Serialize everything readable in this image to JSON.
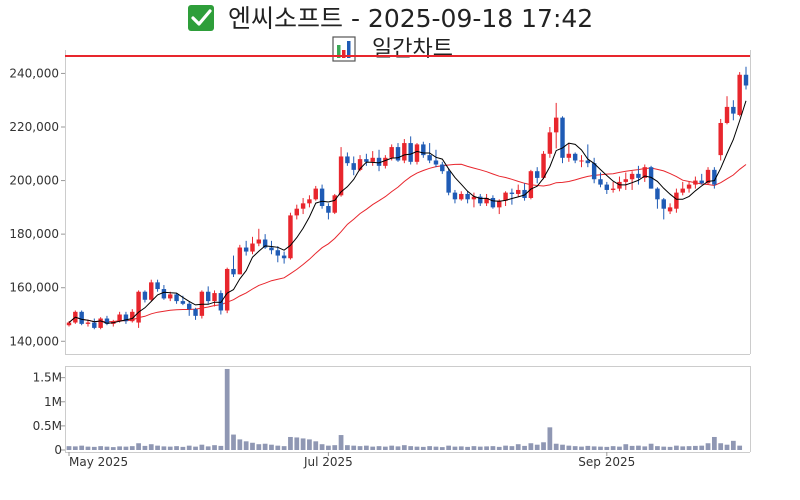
{
  "header": {
    "check_icon": "check-mark-icon",
    "title": "엔씨소프트 - 2025-09-18 17:42",
    "chart_icon": "bar-chart-icon",
    "subtitle": "일간차트"
  },
  "colors": {
    "up": "#e8262d",
    "down": "#1f5bb5",
    "ma5": "#000000",
    "ma20": "#e8262d",
    "resistance": "#e8262d",
    "volume": "#8f97b3",
    "check_bg": "#2e9e3a"
  },
  "chart_data": [
    {
      "type": "candlestick",
      "title": "일간차트",
      "ylim": [
        136000,
        248000
      ],
      "yticks": [
        140000,
        160000,
        180000,
        200000,
        220000,
        240000
      ],
      "ytick_labels": [
        "140,000",
        "160,000",
        "180,000",
        "200,000",
        "220,000",
        "240,000"
      ],
      "xtick_labels": [
        "May 2025",
        "Jul 2025",
        "Sep 2025"
      ],
      "xtick_index": [
        0,
        41,
        85
      ],
      "resistance_line": 246500,
      "grid": false,
      "ohlc": [
        [
          146000,
          147500,
          145500,
          147000
        ],
        [
          147000,
          151500,
          146500,
          151000
        ],
        [
          151000,
          151500,
          146000,
          146500
        ],
        [
          146500,
          148000,
          145500,
          147000
        ],
        [
          147000,
          148500,
          144500,
          145000
        ],
        [
          145000,
          149000,
          144500,
          148500
        ],
        [
          148500,
          149500,
          146000,
          146500
        ],
        [
          146500,
          148000,
          145500,
          147500
        ],
        [
          147500,
          151000,
          147000,
          150000
        ],
        [
          150000,
          151000,
          146500,
          147500
        ],
        [
          147500,
          152000,
          147000,
          151000
        ],
        [
          147000,
          159000,
          145000,
          158500
        ],
        [
          158500,
          159000,
          154500,
          155500
        ],
        [
          155500,
          163000,
          155000,
          162000
        ],
        [
          162000,
          163000,
          158500,
          159500
        ],
        [
          159500,
          161000,
          155500,
          156000
        ],
        [
          156000,
          158500,
          155000,
          157500
        ],
        [
          157500,
          158000,
          154000,
          155000
        ],
        [
          155000,
          157000,
          153500,
          154000
        ],
        [
          154000,
          155000,
          149500,
          152000
        ],
        [
          152000,
          152500,
          148000,
          149500
        ],
        [
          149500,
          159000,
          148500,
          158500
        ],
        [
          158500,
          160500,
          154000,
          155000
        ],
        [
          155000,
          159000,
          153000,
          158000
        ],
        [
          158000,
          159000,
          150000,
          151500
        ],
        [
          151500,
          167500,
          150500,
          167000
        ],
        [
          167000,
          172000,
          164000,
          165000
        ],
        [
          165000,
          176000,
          165000,
          175000
        ],
        [
          175000,
          177500,
          172000,
          173500
        ],
        [
          173500,
          179000,
          172500,
          176500
        ],
        [
          176500,
          182000,
          175500,
          178000
        ],
        [
          178000,
          180000,
          174500,
          175000
        ],
        [
          175000,
          177500,
          172500,
          174000
        ],
        [
          174000,
          175500,
          169500,
          172000
        ],
        [
          172000,
          173500,
          169000,
          171000
        ],
        [
          171000,
          188000,
          170500,
          187000
        ],
        [
          187000,
          191000,
          185500,
          189500
        ],
        [
          189500,
          193500,
          187500,
          191500
        ],
        [
          191500,
          194500,
          190000,
          193000
        ],
        [
          193000,
          198000,
          192500,
          197000
        ],
        [
          197000,
          198500,
          189500,
          190500
        ],
        [
          190500,
          191500,
          185500,
          188000
        ],
        [
          188000,
          195000,
          187500,
          194500
        ],
        [
          194500,
          212500,
          194000,
          209000
        ],
        [
          209000,
          210500,
          205500,
          206500
        ],
        [
          206500,
          209000,
          202000,
          204000
        ],
        [
          204000,
          209500,
          203500,
          208000
        ],
        [
          208000,
          210000,
          205500,
          207000
        ],
        [
          207000,
          211000,
          205500,
          208500
        ],
        [
          208500,
          211500,
          203500,
          205500
        ],
        [
          205500,
          209500,
          204500,
          208500
        ],
        [
          208500,
          213500,
          207500,
          212500
        ],
        [
          212500,
          214000,
          207000,
          207500
        ],
        [
          207500,
          215500,
          206500,
          214000
        ],
        [
          214000,
          216500,
          206000,
          207000
        ],
        [
          207000,
          214000,
          206000,
          213500
        ],
        [
          213500,
          214500,
          208500,
          209500
        ],
        [
          209500,
          214000,
          206500,
          207500
        ],
        [
          207500,
          211500,
          205000,
          206000
        ],
        [
          206000,
          207000,
          202500,
          203500
        ],
        [
          203500,
          204500,
          194500,
          195500
        ],
        [
          195500,
          196500,
          191500,
          193000
        ],
        [
          193000,
          196000,
          192500,
          195000
        ],
        [
          195000,
          196000,
          191500,
          193000
        ],
        [
          193000,
          195500,
          190000,
          194000
        ],
        [
          194000,
          195000,
          190500,
          191500
        ],
        [
          191500,
          195000,
          190500,
          193500
        ],
        [
          193500,
          194500,
          189500,
          190000
        ],
        [
          190000,
          193000,
          187500,
          192500
        ],
        [
          192500,
          196000,
          190500,
          195500
        ],
        [
          195500,
          197000,
          191000,
          195000
        ],
        [
          195000,
          198500,
          194000,
          196500
        ],
        [
          196500,
          199000,
          192500,
          193500
        ],
        [
          193500,
          204000,
          193000,
          203500
        ],
        [
          203500,
          205000,
          199000,
          201000
        ],
        [
          201000,
          211000,
          200500,
          210000
        ],
        [
          210000,
          220000,
          208500,
          218000
        ],
        [
          218000,
          229000,
          212000,
          223500
        ],
        [
          223500,
          224000,
          206500,
          208500
        ],
        [
          208500,
          214000,
          207000,
          210000
        ],
        [
          210000,
          210500,
          206500,
          207500
        ],
        [
          207500,
          209500,
          205000,
          207500
        ],
        [
          207500,
          213500,
          205000,
          206500
        ],
        [
          206500,
          208500,
          199000,
          200500
        ],
        [
          200500,
          203000,
          197500,
          198500
        ],
        [
          198500,
          199500,
          195000,
          196500
        ],
        [
          196500,
          199500,
          195500,
          197000
        ],
        [
          197000,
          201500,
          196000,
          199500
        ],
        [
          199500,
          203000,
          196500,
          200500
        ],
        [
          200500,
          203500,
          196500,
          202500
        ],
        [
          202500,
          205500,
          198500,
          201000
        ],
        [
          201000,
          206000,
          199500,
          205000
        ],
        [
          205000,
          205500,
          197000,
          197000
        ],
        [
          197000,
          197500,
          189500,
          193000
        ],
        [
          193000,
          193500,
          185500,
          189500
        ],
        [
          188500,
          191500,
          187500,
          190000
        ],
        [
          189500,
          197000,
          188000,
          195500
        ],
        [
          195500,
          199500,
          194500,
          197000
        ],
        [
          197000,
          199500,
          195500,
          198500
        ],
        [
          198500,
          201500,
          197000,
          200000
        ],
        [
          200000,
          202500,
          198500,
          199000
        ],
        [
          199000,
          205000,
          198500,
          204000
        ],
        [
          204000,
          205000,
          197000,
          198500
        ],
        [
          209500,
          223000,
          207500,
          221500
        ],
        [
          221500,
          231500,
          221000,
          227500
        ],
        [
          227500,
          230000,
          222500,
          225000
        ],
        [
          224500,
          240500,
          224000,
          239500
        ],
        [
          239500,
          242500,
          234000,
          235500
        ]
      ]
    },
    {
      "type": "bar",
      "title": "",
      "ylim": [
        0,
        1700000
      ],
      "yticks": [
        0,
        500000,
        1000000,
        1500000
      ],
      "ytick_labels": [
        "0",
        "0.5M",
        "1M",
        "1.5M"
      ],
      "values": [
        80000,
        75000,
        90000,
        70000,
        65000,
        80000,
        70000,
        60000,
        75000,
        70000,
        80000,
        140000,
        85000,
        120000,
        90000,
        75000,
        70000,
        80000,
        65000,
        90000,
        70000,
        110000,
        75000,
        100000,
        85000,
        1680000,
        320000,
        220000,
        180000,
        150000,
        120000,
        130000,
        110000,
        90000,
        80000,
        270000,
        260000,
        240000,
        220000,
        180000,
        120000,
        90000,
        100000,
        310000,
        100000,
        90000,
        80000,
        90000,
        70000,
        80000,
        70000,
        90000,
        75000,
        100000,
        80000,
        70000,
        65000,
        80000,
        70000,
        60000,
        90000,
        70000,
        75000,
        65000,
        80000,
        70000,
        75000,
        80000,
        65000,
        90000,
        80000,
        120000,
        85000,
        140000,
        110000,
        160000,
        470000,
        130000,
        110000,
        90000,
        80000,
        70000,
        85000,
        75000,
        70000,
        65000,
        80000,
        70000,
        120000,
        85000,
        90000,
        75000,
        130000,
        80000,
        70000,
        65000,
        90000,
        75000,
        80000,
        85000,
        90000,
        140000,
        270000,
        140000,
        110000,
        190000,
        90000
      ]
    }
  ]
}
